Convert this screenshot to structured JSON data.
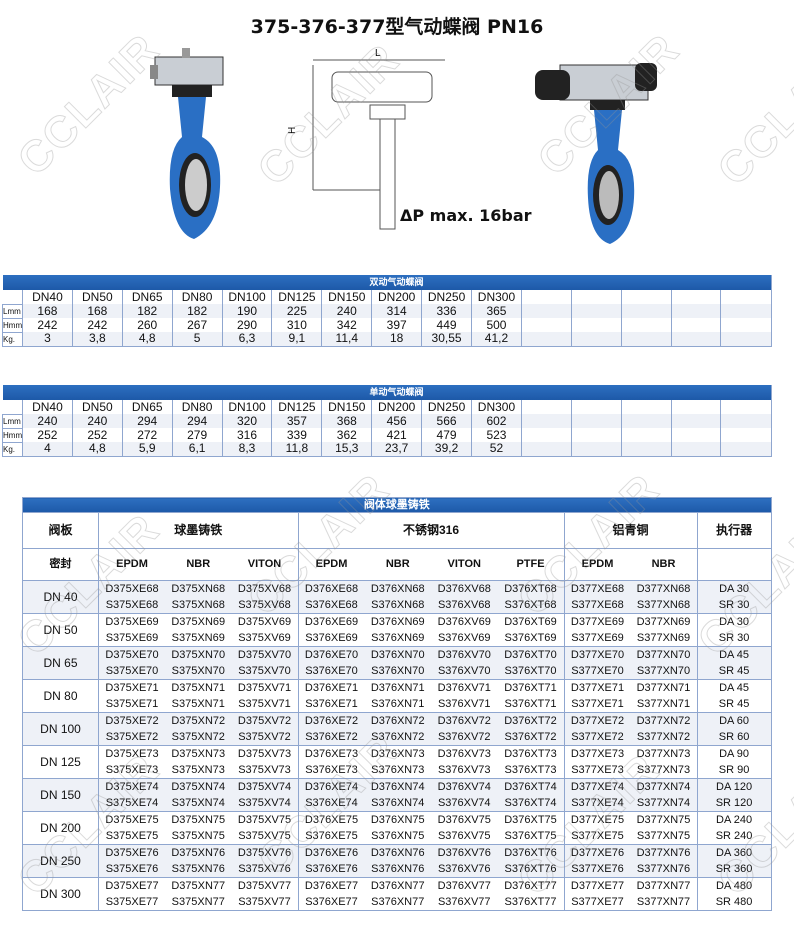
{
  "title": "375-376-377型气动蝶阀 PN16",
  "pressure": "ΔP  max. 16bar",
  "drawing": {
    "L": "L",
    "H": "H"
  },
  "watermark": "CCLAIR",
  "colors": {
    "header_blue": "#1d59a8",
    "valve_blue": "#2a6fc4"
  },
  "row_labels": [
    "Lmm",
    "Hmm",
    "Kg."
  ],
  "double_acting": {
    "title": "双动气动蝶阀",
    "sizes": [
      "DN40",
      "DN50",
      "DN65",
      "DN80",
      "DN100",
      "DN125",
      "DN150",
      "DN200",
      "DN250",
      "DN300"
    ],
    "rows": [
      [
        "168",
        "168",
        "182",
        "182",
        "190",
        "225",
        "240",
        "314",
        "336",
        "365"
      ],
      [
        "242",
        "242",
        "260",
        "267",
        "290",
        "310",
        "342",
        "397",
        "449",
        "500"
      ],
      [
        "3",
        "3,8",
        "4,8",
        "5",
        "6,3",
        "9,1",
        "11,4",
        "18",
        "30,55",
        "41,2"
      ]
    ]
  },
  "single_acting": {
    "title": "单动气动蝶阀",
    "sizes": [
      "DN40",
      "DN50",
      "DN65",
      "DN80",
      "DN100",
      "DN125",
      "DN150",
      "DN200",
      "DN250",
      "DN300"
    ],
    "rows": [
      [
        "240",
        "240",
        "294",
        "294",
        "320",
        "357",
        "368",
        "456",
        "566",
        "602"
      ],
      [
        "252",
        "252",
        "272",
        "279",
        "316",
        "339",
        "362",
        "421",
        "479",
        "523"
      ],
      [
        "4",
        "4,8",
        "5,9",
        "6,1",
        "8,3",
        "11,8",
        "15,3",
        "23,7",
        "39,2",
        "52"
      ]
    ]
  },
  "codes": {
    "title": "阀体球墨铸铁",
    "disc_label": "阀板",
    "seal_label": "密封",
    "groups": [
      "球墨铸铁",
      "不锈钢316",
      "铝青铜",
      "执行器"
    ],
    "seals": [
      "EPDM",
      "NBR",
      "VITON",
      "EPDM",
      "NBR",
      "VITON",
      "PTFE",
      "EPDM",
      "NBR"
    ],
    "rows": [
      {
        "dn": "DN 40",
        "n": "68",
        "da": "DA 30",
        "sr": "SR 30"
      },
      {
        "dn": "DN 50",
        "n": "69",
        "da": "DA 30",
        "sr": "SR 30"
      },
      {
        "dn": "DN 65",
        "n": "70",
        "da": "DA 45",
        "sr": "SR 45"
      },
      {
        "dn": "DN 80",
        "n": "71",
        "da": "DA 45",
        "sr": "SR 45"
      },
      {
        "dn": "DN 100",
        "n": "72",
        "da": "DA 60",
        "sr": "SR 60"
      },
      {
        "dn": "DN 125",
        "n": "73",
        "da": "DA 90",
        "sr": "SR 90"
      },
      {
        "dn": "DN 150",
        "n": "74",
        "da": "DA 120",
        "sr": "SR 120"
      },
      {
        "dn": "DN 200",
        "n": "75",
        "da": "DA 240",
        "sr": "SR 240"
      },
      {
        "dn": "DN 250",
        "n": "76",
        "da": "DA 360",
        "sr": "SR 360"
      },
      {
        "dn": "DN 300",
        "n": "77",
        "da": "DA 480",
        "sr": "SR 480"
      }
    ],
    "prefixes": [
      "375XE",
      "375XN",
      "375XV",
      "376XE",
      "376XN",
      "376XV",
      "376XT",
      "377XE",
      "377XN"
    ]
  }
}
